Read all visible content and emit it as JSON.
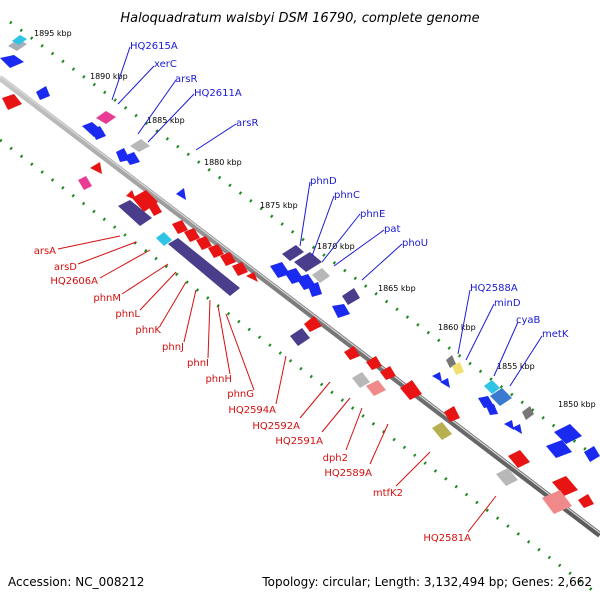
{
  "title": "Haloquadratum walsbyi DSM 16790, complete genome",
  "footer": {
    "accession": "Accession: NC_008212",
    "summary": "Topology: circular; Length: 3,132,494 bp; Genes: 2,662"
  },
  "kbp_ticks": [
    "1895 kbp",
    "1890 kbp",
    "1885 kbp",
    "1880 kbp",
    "1875 kbp",
    "1870 kbp",
    "1865 kbp",
    "1860 kbp",
    "1855 kbp",
    "1850 kbp"
  ],
  "forward_labels": [
    "HQ2615A",
    "xerC",
    "arsR",
    "HQ2611A",
    "arsR",
    "phnD",
    "phnC",
    "phnE",
    "pat",
    "phoU",
    "HQ2588A",
    "minD",
    "cyaB",
    "metK"
  ],
  "reverse_labels": [
    "arsA",
    "arsD",
    "HQ2606A",
    "phnM",
    "phnL",
    "phnK",
    "phnJ",
    "phnI",
    "phnH",
    "phnG",
    "HQ2594A",
    "HQ2592A",
    "HQ2591A",
    "dph2",
    "HQ2589A",
    "mtfK2",
    "HQ2581A"
  ],
  "colors": {
    "forward_label": "#1a1ad6",
    "reverse_label": "#d41010",
    "forward_gene": "#1a2af0",
    "reverse_gene": "#e81414",
    "operon_dark": "#4a3e8c",
    "backbone": "#8a8a8a",
    "tick_dots": "#1f8a1f"
  }
}
